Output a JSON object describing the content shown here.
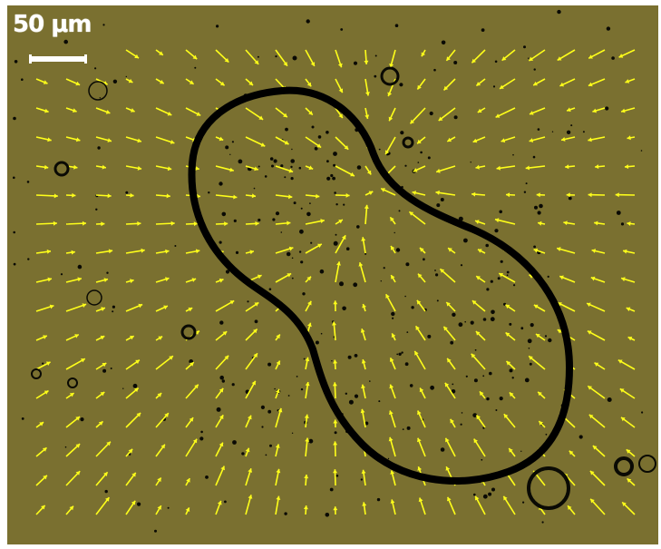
{
  "image": {
    "scale_label": "50 μm",
    "background_color": "#7a7030",
    "arrow_color": "#ffff1a",
    "outline_color": "#000000"
  }
}
